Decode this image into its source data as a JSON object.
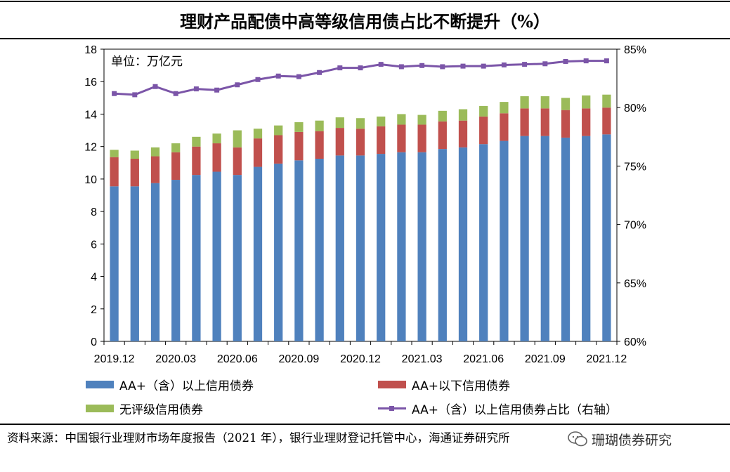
{
  "title": "理财产品配债中高等级信用债占比不断提升（%）",
  "source": "资料来源：中国银行业理财市场年度报告（2021 年），银行业理财登记托管中心，海通证券研究所",
  "watermark": "珊瑚债券研究",
  "colors": {
    "aa_plus": "#4f81bd",
    "below_aa_plus": "#c0504d",
    "unrated": "#9bbb59",
    "share_line": "#7b55a8"
  },
  "chart_data": {
    "type": "bar",
    "stacked": true,
    "unit_label": "单位：万亿元",
    "periods": 25,
    "x_tick_labels": [
      "2019.12",
      "2020.03",
      "2020.06",
      "2020.09",
      "2020.12",
      "2021.03",
      "2021.06",
      "2021.09",
      "2021.12"
    ],
    "x_tick_period_index": [
      0,
      3,
      6,
      9,
      12,
      15,
      18,
      21,
      24
    ],
    "y_left": {
      "min": 0,
      "max": 18,
      "ticks": [
        "0",
        "2",
        "4",
        "6",
        "8",
        "10",
        "12",
        "14",
        "16",
        "18"
      ]
    },
    "y_right": {
      "min": 60,
      "max": 85,
      "ticks": [
        "60%",
        "65%",
        "70%",
        "75%",
        "80%",
        "85%"
      ]
    },
    "series": [
      {
        "name": "AA+（含）以上信用债券",
        "kind": "bar",
        "axis": "left",
        "values": [
          9.55,
          9.55,
          9.75,
          9.95,
          10.25,
          10.45,
          10.25,
          10.75,
          10.95,
          11.15,
          11.25,
          11.45,
          11.45,
          11.55,
          11.65,
          11.65,
          11.85,
          11.95,
          12.15,
          12.35,
          12.65,
          12.65,
          12.55,
          12.65,
          12.75
        ]
      },
      {
        "name": "AA+以下信用债券",
        "kind": "bar",
        "axis": "left",
        "values": [
          1.8,
          1.7,
          1.65,
          1.7,
          1.75,
          1.75,
          1.7,
          1.75,
          1.75,
          1.75,
          1.7,
          1.7,
          1.65,
          1.7,
          1.7,
          1.7,
          1.7,
          1.65,
          1.7,
          1.7,
          1.7,
          1.7,
          1.7,
          1.7,
          1.65
        ]
      },
      {
        "name": "无评级信用债券",
        "kind": "bar",
        "axis": "left",
        "values": [
          0.45,
          0.5,
          0.55,
          0.55,
          0.6,
          0.6,
          1.05,
          0.6,
          0.6,
          0.6,
          0.65,
          0.65,
          0.65,
          0.6,
          0.65,
          0.6,
          0.65,
          0.7,
          0.65,
          0.7,
          0.75,
          0.75,
          0.75,
          0.8,
          0.8
        ]
      },
      {
        "name": "AA+（含）以上信用债券占比（右轴）",
        "kind": "line",
        "axis": "right",
        "values": [
          81.2,
          81.1,
          81.8,
          81.2,
          81.6,
          81.5,
          81.95,
          82.4,
          82.7,
          82.65,
          83.0,
          83.4,
          83.4,
          83.7,
          83.5,
          83.6,
          83.5,
          83.55,
          83.55,
          83.65,
          83.7,
          83.75,
          83.95,
          84.0,
          84.0
        ]
      }
    ]
  }
}
